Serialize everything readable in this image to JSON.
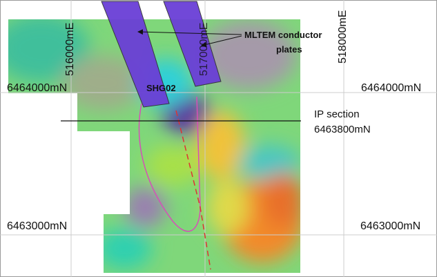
{
  "eastings": [
    "516000mE",
    "517000mE",
    "518000mE"
  ],
  "northings_left": [
    "6464000mN",
    "6463000mN"
  ],
  "northings_right": [
    "6464000mN",
    "6463000mN"
  ],
  "annotations": {
    "conductor_line1": "MLTEM conductor",
    "conductor_line2": "plates",
    "drillhole": "SHG02",
    "section_line1": "IP section",
    "section_line2": "6463800mN"
  }
}
